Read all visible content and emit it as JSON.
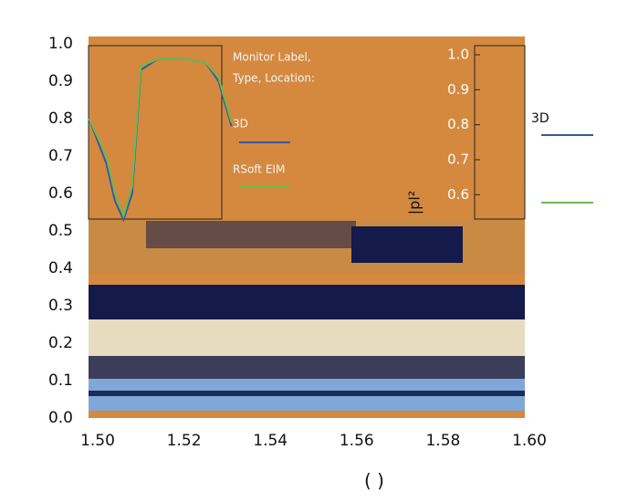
{
  "chart_data": {
    "type": "line",
    "x_label": "(  )",
    "annotations": [
      "Monitor Label,",
      "Type, Location:"
    ],
    "x": [
      1.498,
      1.502,
      1.504,
      1.506,
      1.508,
      1.51,
      1.514,
      1.52,
      1.525,
      1.528,
      1.53,
      1.531
    ],
    "series": [
      {
        "name": "3D",
        "color": "#3a55a8",
        "values": [
          0.8,
          0.68,
          0.58,
          0.53,
          0.6,
          0.93,
          0.96,
          0.96,
          0.95,
          0.9,
          0.82,
          0.78
        ]
      },
      {
        "name": "RSoft EIM",
        "color": "#6cbb4a",
        "values": [
          0.8,
          0.7,
          0.6,
          0.54,
          0.62,
          0.94,
          0.96,
          0.96,
          0.95,
          0.91,
          0.83,
          0.79
        ]
      }
    ],
    "xlim": [
      1.5,
      1.6
    ],
    "xticks": [
      {
        "value": 1.5,
        "label": "1.50"
      },
      1.52,
      1.54,
      1.56,
      1.58,
      {
        "value": 1.6,
        "label": "1.60"
      }
    ],
    "ylim": [
      0,
      1
    ],
    "yticks": [
      {
        "value": 0,
        "label": "0.0"
      },
      0.1,
      0.2,
      0.3,
      0.4,
      0.5,
      0.6,
      0.7,
      0.8,
      0.9,
      {
        "value": 1,
        "label": "1.0"
      }
    ],
    "inset_y_label": "|pl²",
    "inset_ylim": [
      0.55,
      1.0
    ],
    "inset_yticks": [
      0.6,
      0.7,
      0.8,
      0.9,
      {
        "value": 1,
        "label": "1.0"
      }
    ]
  }
}
